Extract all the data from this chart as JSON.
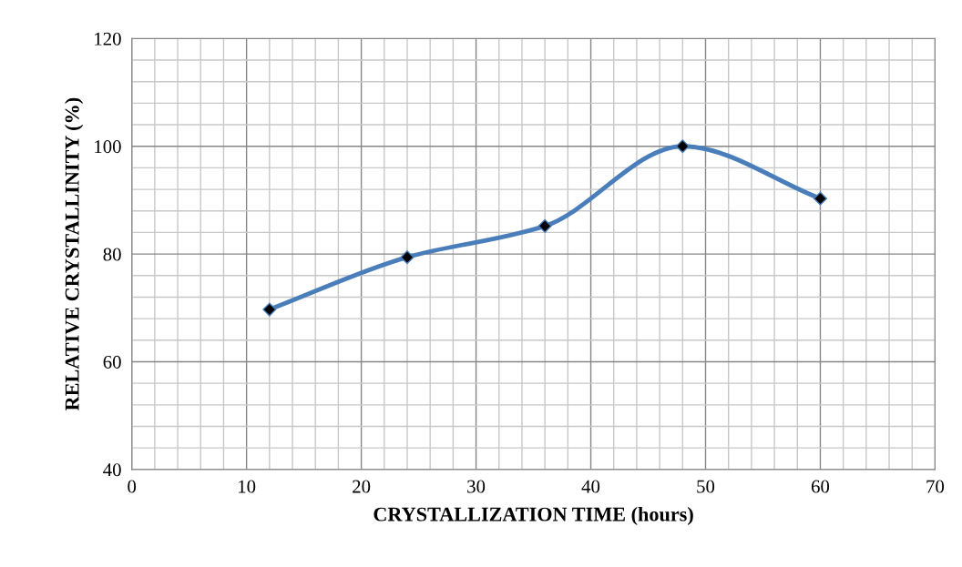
{
  "chart_data": {
    "type": "line",
    "xlabel": "CRYSTALLIZATION TIME (hours)",
    "ylabel": "RELATIVE CRYSTALLINITY (%)",
    "x": [
      12,
      24,
      36,
      48,
      60
    ],
    "series": [
      {
        "color": "#4a7ebb",
        "values": [
          69.7,
          79.4,
          85.2,
          100,
          90.3
        ]
      }
    ],
    "marker": "diamond",
    "line_style": "solid",
    "grid": true,
    "legend": false,
    "xlim": [
      0,
      70
    ],
    "ylim": [
      40,
      120
    ],
    "xticks": [
      0,
      {
        "value": 2,
        "label": null
      },
      {
        "value": 4,
        "label": null
      },
      {
        "value": 6,
        "label": null
      },
      {
        "value": 8,
        "label": null
      },
      10,
      {
        "value": 12,
        "label": null
      },
      {
        "value": 14,
        "label": null
      },
      {
        "value": 16,
        "label": null
      },
      {
        "value": 18,
        "label": null
      },
      20,
      {
        "value": 22,
        "label": null
      },
      {
        "value": 24,
        "label": null
      },
      {
        "value": 26,
        "label": null
      },
      {
        "value": 28,
        "label": null
      },
      30,
      {
        "value": 32,
        "label": null
      },
      {
        "value": 34,
        "label": null
      },
      {
        "value": 36,
        "label": null
      },
      {
        "value": 38,
        "label": null
      },
      40,
      {
        "value": 42,
        "label": null
      },
      {
        "value": 44,
        "label": null
      },
      {
        "value": 46,
        "label": null
      },
      {
        "value": 48,
        "label": null
      },
      50,
      {
        "value": 52,
        "label": null
      },
      {
        "value": 54,
        "label": null
      },
      {
        "value": 56,
        "label": null
      },
      {
        "value": 58,
        "label": null
      },
      60,
      {
        "value": 62,
        "label": null
      },
      {
        "value": 64,
        "label": null
      },
      {
        "value": 66,
        "label": null
      },
      {
        "value": 68,
        "label": null
      },
      70
    ],
    "yticks": [
      40,
      {
        "value": 44,
        "label": null
      },
      {
        "value": 48,
        "label": null
      },
      {
        "value": 52,
        "label": null
      },
      {
        "value": 56,
        "label": null
      },
      60,
      {
        "value": 64,
        "label": null
      },
      {
        "value": 68,
        "label": null
      },
      {
        "value": 72,
        "label": null
      },
      {
        "value": 76,
        "label": null
      },
      80,
      {
        "value": 84,
        "label": null
      },
      {
        "value": 88,
        "label": null
      },
      {
        "value": 92,
        "label": null
      },
      {
        "value": 96,
        "label": null
      },
      100,
      {
        "value": 104,
        "label": null
      },
      {
        "value": 108,
        "label": null
      },
      {
        "value": 112,
        "label": null
      },
      {
        "value": 116,
        "label": null
      },
      120
    ]
  }
}
